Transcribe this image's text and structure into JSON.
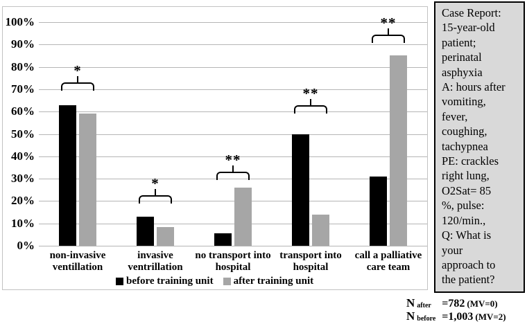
{
  "chart_data": {
    "type": "bar",
    "title": "",
    "xlabel": "",
    "ylabel": "",
    "ylim": [
      0,
      100
    ],
    "grid": true,
    "legend_position": "bottom",
    "y_ticks": [
      {
        "value": 0,
        "label": "0%"
      },
      {
        "value": 10,
        "label": "10%"
      },
      {
        "value": 20,
        "label": "20%"
      },
      {
        "value": 30,
        "label": "30%"
      },
      {
        "value": 40,
        "label": "40%"
      },
      {
        "value": 50,
        "label": "50%"
      },
      {
        "value": 60,
        "label": "60%"
      },
      {
        "value": 70,
        "label": "70%"
      },
      {
        "value": 80,
        "label": "80%"
      },
      {
        "value": 90,
        "label": "90%"
      },
      {
        "value": 100,
        "label": "100%"
      }
    ],
    "categories": [
      "non-invasive\nventillation",
      "invasive\nventrillation",
      "no transport into\nhospital",
      "transport into\nhospital",
      "call a palliative\ncare team"
    ],
    "series": [
      {
        "name": "before training unit",
        "color": "#000000",
        "values": [
          63,
          13,
          5.5,
          50,
          31
        ]
      },
      {
        "name": "after training unit",
        "color": "#a6a6a6",
        "values": [
          59,
          8.5,
          26,
          14,
          85
        ]
      }
    ],
    "significance": [
      {
        "stars": "*",
        "line_pct": 73
      },
      {
        "stars": "*",
        "line_pct": 22.5
      },
      {
        "stars": "**",
        "line_pct": 33
      },
      {
        "stars": "**",
        "line_pct": 63
      },
      {
        "stars": "**",
        "line_pct": 94.5
      }
    ]
  },
  "legend": {
    "items": [
      {
        "label": "before training unit",
        "color": "#000000"
      },
      {
        "label": "after training unit",
        "color": "#a6a6a6"
      }
    ]
  },
  "case_report": {
    "text": "Case Report:\n15-year-old\npatient;\nperinatal\nasphyxia\nA: hours after\nvomiting,\nfever,\ncoughing,\ntachypnea\nPE: crackles\nright lung,\nO2Sat= 85\n%, pulse:\n120/min.,\nQ: What is\nyour\napproach to\nthe patient?"
  },
  "footnotes": {
    "rows": [
      {
        "n": "N",
        "sub": "after",
        "value": "=782",
        "mv": "(MV=0)"
      },
      {
        "n": "N",
        "sub": "before",
        "value": "=1,003",
        "mv": "(MV=2)"
      }
    ]
  },
  "colors": {
    "bar_before": "#000000",
    "bar_after": "#a6a6a6",
    "gridline": "#b5b5b5",
    "frame_border": "#c2c2c2",
    "case_box_bg": "#d9d9d9"
  }
}
